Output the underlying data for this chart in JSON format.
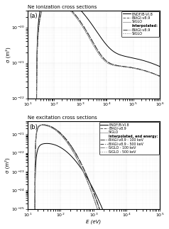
{
  "title_a": "Ne ionization cross sections",
  "title_b": "Ne excitation cross sections",
  "xlabel": "E (eV)",
  "ylabel": "σ (m²)",
  "label_a": "(a)",
  "label_b": "(b)",
  "xlim_a": [
    10.0,
    1000000.0
  ],
  "ylim_a": [
    1e-22,
    3e-20
  ],
  "xlim_b": [
    10.0,
    100000.0
  ],
  "ylim_b": [
    1e-25,
    5e-21
  ],
  "colors": {
    "endf": "#000000",
    "biagi": "#555555",
    "siglo": "#aaaaaa",
    "interp_biagi": "#333333",
    "interp_siglo": "#777777"
  },
  "background": "#ffffff"
}
